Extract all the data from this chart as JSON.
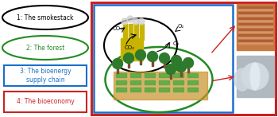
{
  "labels": [
    "1: The smokestack",
    "2: The forest",
    "3: The bioenergy\nsupply chain",
    "4: The bioeconomy"
  ],
  "label_colors": [
    "black",
    "#228B22",
    "#1a6fcc",
    "#cc2222"
  ],
  "outer_border_color": "#cc2222",
  "inner_border_color": "#1a6fcc",
  "green_ellipse_color": "#228B22",
  "black_ellipse_color": "black",
  "bg_color": "white",
  "co2_label": "CO₂",
  "o2_label": "O₂",
  "factory_color": "#c8b400",
  "tree_color": "#2d7a2d",
  "trunk_color": "#7a4e2d",
  "soil_color": "#c8922a",
  "crop_color": "#55aa44",
  "lumber_color": "#c87941",
  "lumber_stripe": "#d4956a",
  "lumber_dark": "#b06030",
  "paper_bg": "#b0b8c0",
  "paper_light": "#d0d8e0",
  "paper_lighter": "#e0e8f0"
}
